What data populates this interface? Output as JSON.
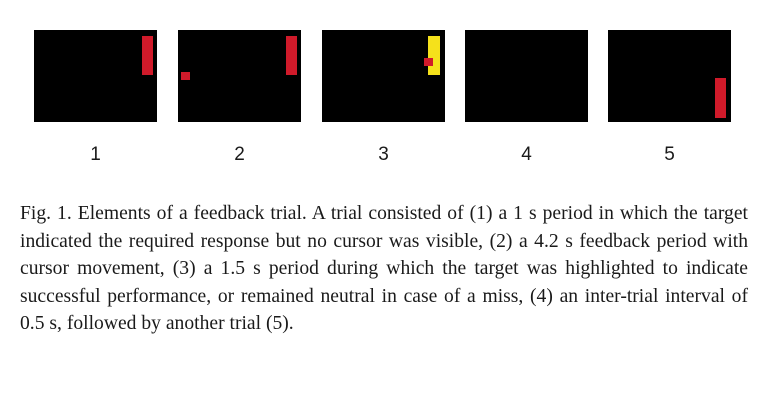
{
  "figure": {
    "panels": [
      {
        "label": "1",
        "target_color": "#d01a2a",
        "cursor_visible": false,
        "target_visible": true,
        "target_state": "top"
      },
      {
        "label": "2",
        "target_color": "#d01a2a",
        "cursor_visible": true,
        "target_visible": true,
        "target_state": "top"
      },
      {
        "label": "3",
        "target_color": "#f5e11b",
        "cursor_visible": true,
        "target_visible": true,
        "target_state": "top-highlighted"
      },
      {
        "label": "4",
        "target_color": "#d01a2a",
        "cursor_visible": false,
        "target_visible": false,
        "target_state": "none"
      },
      {
        "label": "5",
        "target_color": "#d01a2a",
        "cursor_visible": false,
        "target_visible": true,
        "target_state": "bottom"
      }
    ],
    "colors": {
      "background": "#000000",
      "target": "#d01a2a",
      "highlight": "#f5e11b",
      "cursor": "#d01a2a"
    },
    "caption": "Fig. 1. Elements of a feedback trial. A trial consisted of (1) a 1 s period in which the target indicated the required response but no cursor was visible, (2) a 4.2 s feedback period with cursor movement, (3) a 1.5 s period during which the target was highlighted to indicate successful performance, or remained neutral in case of a miss, (4) an inter-trial interval of 0.5 s, followed by another trial (5)."
  }
}
